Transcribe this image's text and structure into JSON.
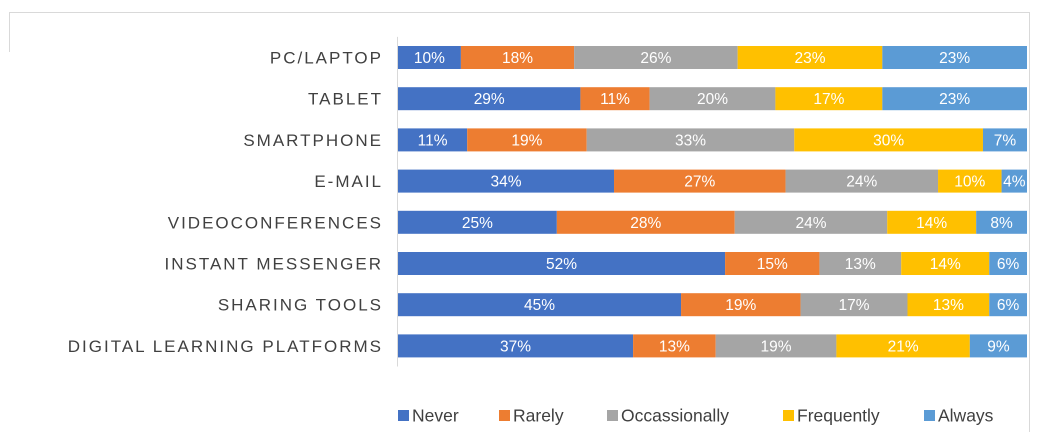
{
  "chart_data": {
    "type": "bar",
    "orientation": "horizontal",
    "stacked": "100%",
    "categories": [
      "PC/LAPTOP",
      "TABLET",
      "SMARTPHONE",
      "E-MAIL",
      "VIDEOCONFERENCES",
      "INSTANT MESSENGER",
      "SHARING TOOLS",
      "DIGITAL LEARNING PLATFORMS"
    ],
    "series": [
      {
        "name": "Never",
        "color": "#4472c4",
        "values": [
          10,
          29,
          11,
          34,
          25,
          52,
          45,
          37
        ]
      },
      {
        "name": "Rarely",
        "color": "#ed7d31",
        "values": [
          18,
          11,
          19,
          27,
          28,
          15,
          19,
          13
        ]
      },
      {
        "name": "Occassionally",
        "color": "#a5a5a5",
        "values": [
          26,
          20,
          33,
          24,
          24,
          13,
          17,
          19
        ]
      },
      {
        "name": "Frequently",
        "color": "#ffc000",
        "values": [
          23,
          17,
          30,
          10,
          14,
          14,
          13,
          21
        ]
      },
      {
        "name": "Always",
        "color": "#5b9bd5",
        "values": [
          23,
          23,
          7,
          4,
          8,
          6,
          6,
          9
        ]
      }
    ],
    "value_suffix": "%",
    "legend_position": "bottom",
    "grid": false
  }
}
